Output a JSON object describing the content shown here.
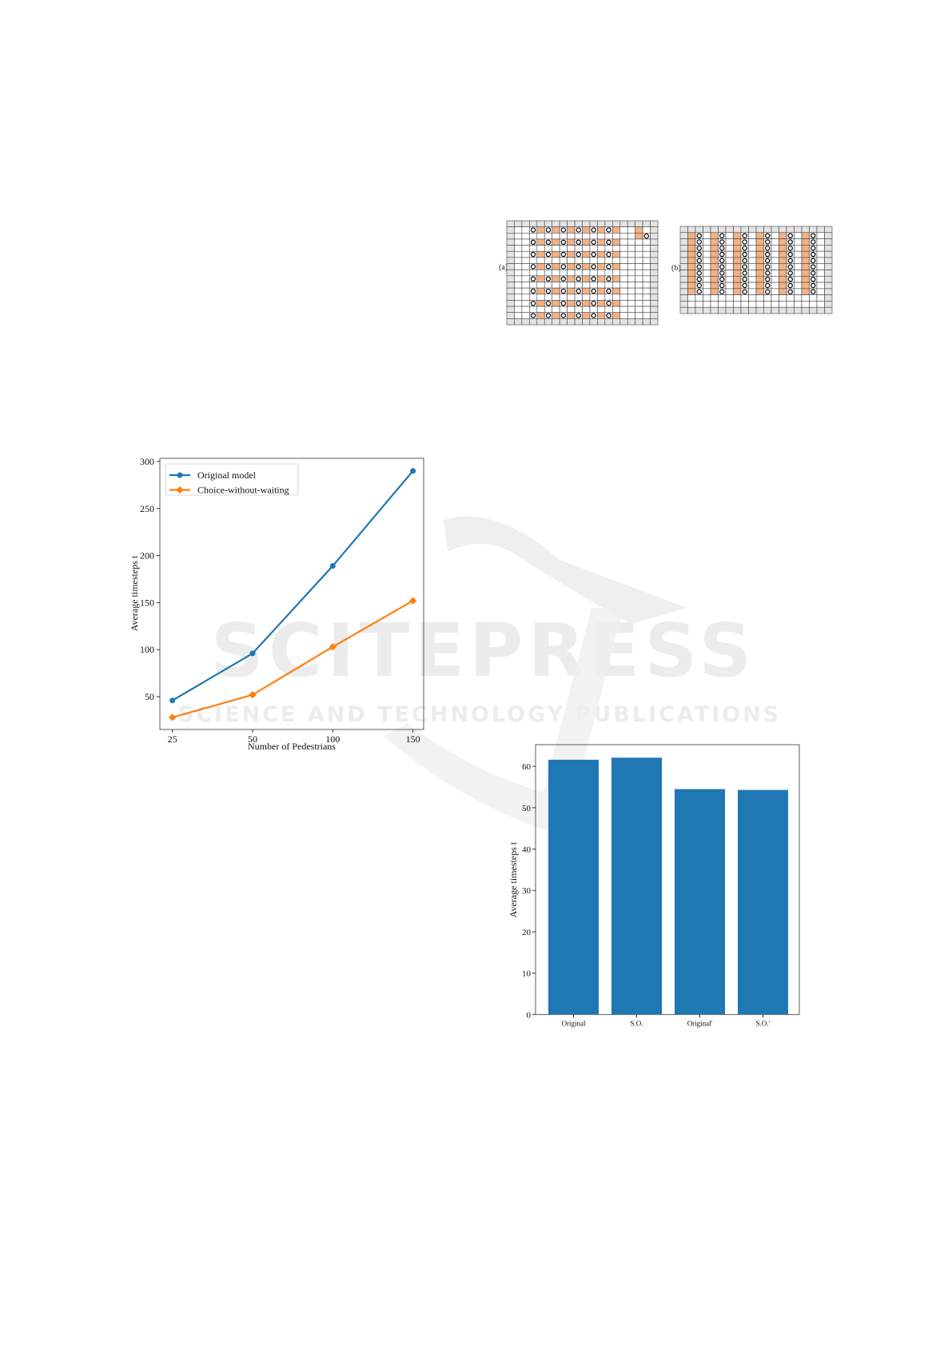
{
  "watermark": {
    "title": "SCITEPRESS",
    "subtitle": "SCIENCE AND TECHNOLOGY PUBLICATIONS"
  },
  "grid_figure": {
    "panel_a_label": "(a)",
    "panel_b_label": "(b)",
    "colors": {
      "wall": "#e3e3e3",
      "occupied": "#f4b183",
      "empty": "#ffffff",
      "line": "#444444"
    }
  },
  "chart_data": [
    {
      "type": "line",
      "categories": [
        "25",
        "50",
        "100",
        "150"
      ],
      "xlabel": "Number of Pedestrians",
      "ylabel": "Average timesteps t",
      "yticks": [
        50,
        100,
        150,
        200,
        250,
        300
      ],
      "legend_position": "top-left",
      "grid": false,
      "series": [
        {
          "name": "Original model",
          "values": [
            46,
            96,
            189,
            290
          ],
          "color": "#1f77b4",
          "marker": "circle"
        },
        {
          "name": "Choice-without-waiting",
          "values": [
            28,
            52,
            103,
            152
          ],
          "color": "#ff7f0e",
          "marker": "diamond"
        }
      ]
    },
    {
      "type": "bar",
      "categories": [
        "Original",
        "S.O.",
        "Original'",
        "S.O.'"
      ],
      "values": [
        61.6,
        62.1,
        54.5,
        54.3
      ],
      "ylabel": "Average timesteps t",
      "yticks": [
        0,
        10,
        20,
        30,
        40,
        50,
        60
      ],
      "ylim": [
        0,
        65
      ],
      "color": "#1f77b4",
      "grid": false
    }
  ]
}
